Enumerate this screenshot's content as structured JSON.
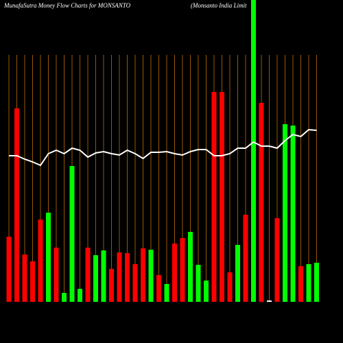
{
  "chart_data": {
    "type": "bar",
    "title": "MunafaSutra  Money Flow  Charts for MONSANTO",
    "subtitle": "(Monsanto  India  Limit",
    "grid": true,
    "grid_color": "#c07000",
    "line_color": "#ffffff",
    "categories": [
      null,
      null,
      null,
      null,
      null,
      null,
      null,
      null,
      null,
      null,
      null,
      null,
      null,
      null,
      null,
      null,
      null,
      null,
      null,
      null,
      null,
      null,
      null,
      null,
      null,
      null,
      null,
      null,
      null,
      null,
      null,
      null,
      null,
      null,
      null,
      null,
      null,
      null,
      null,
      null
    ],
    "series": [
      {
        "type": "bar",
        "colors": [
          "#ff0000",
          "#ff0000",
          "#ff0000",
          "#ff0000",
          "#ff0000",
          "#00ff00",
          "#ff0000",
          "#00ff00",
          "#00ff00",
          "#00ff00",
          "#ff0000",
          "#00ff00",
          "#00ff00",
          "#ff0000",
          "#ff0000",
          "#ff0000",
          "#ff0000",
          "#ff0000",
          "#00ff00",
          "#ff0000",
          "#00ff00",
          "#ff0000",
          "#ff0000",
          "#00ff00",
          "#00ff00",
          "#00ff00",
          "#ff0000",
          "#ff0000",
          "#ff0000",
          "#00ff00",
          "#ff0000",
          "#00ff00",
          "#ff0000",
          "#ffffff",
          "#ff0000",
          "#00ff00",
          "#00ff00",
          "#ff0000",
          "#00ff00",
          "#00ff00"
        ],
        "values": [
          95,
          282,
          69,
          59,
          120,
          130,
          79,
          13,
          198,
          19,
          79,
          68,
          75,
          48,
          72,
          71,
          55,
          78,
          76,
          39,
          26,
          85,
          93,
          102,
          54,
          31,
          306,
          306,
          43,
          83,
          127,
          470,
          290,
          2,
          122,
          259,
          257,
          52,
          55,
          57
        ]
      },
      {
        "type": "line",
        "values": [
          213,
          213,
          208,
          204,
          199,
          216,
          221,
          216,
          224,
          221,
          211,
          217,
          219,
          216,
          214,
          221,
          216,
          209,
          218,
          218,
          219,
          216,
          214,
          219,
          222,
          222,
          213,
          213,
          216,
          224,
          224,
          233,
          227,
          227,
          224,
          235,
          244,
          241,
          251,
          250
        ]
      }
    ]
  }
}
